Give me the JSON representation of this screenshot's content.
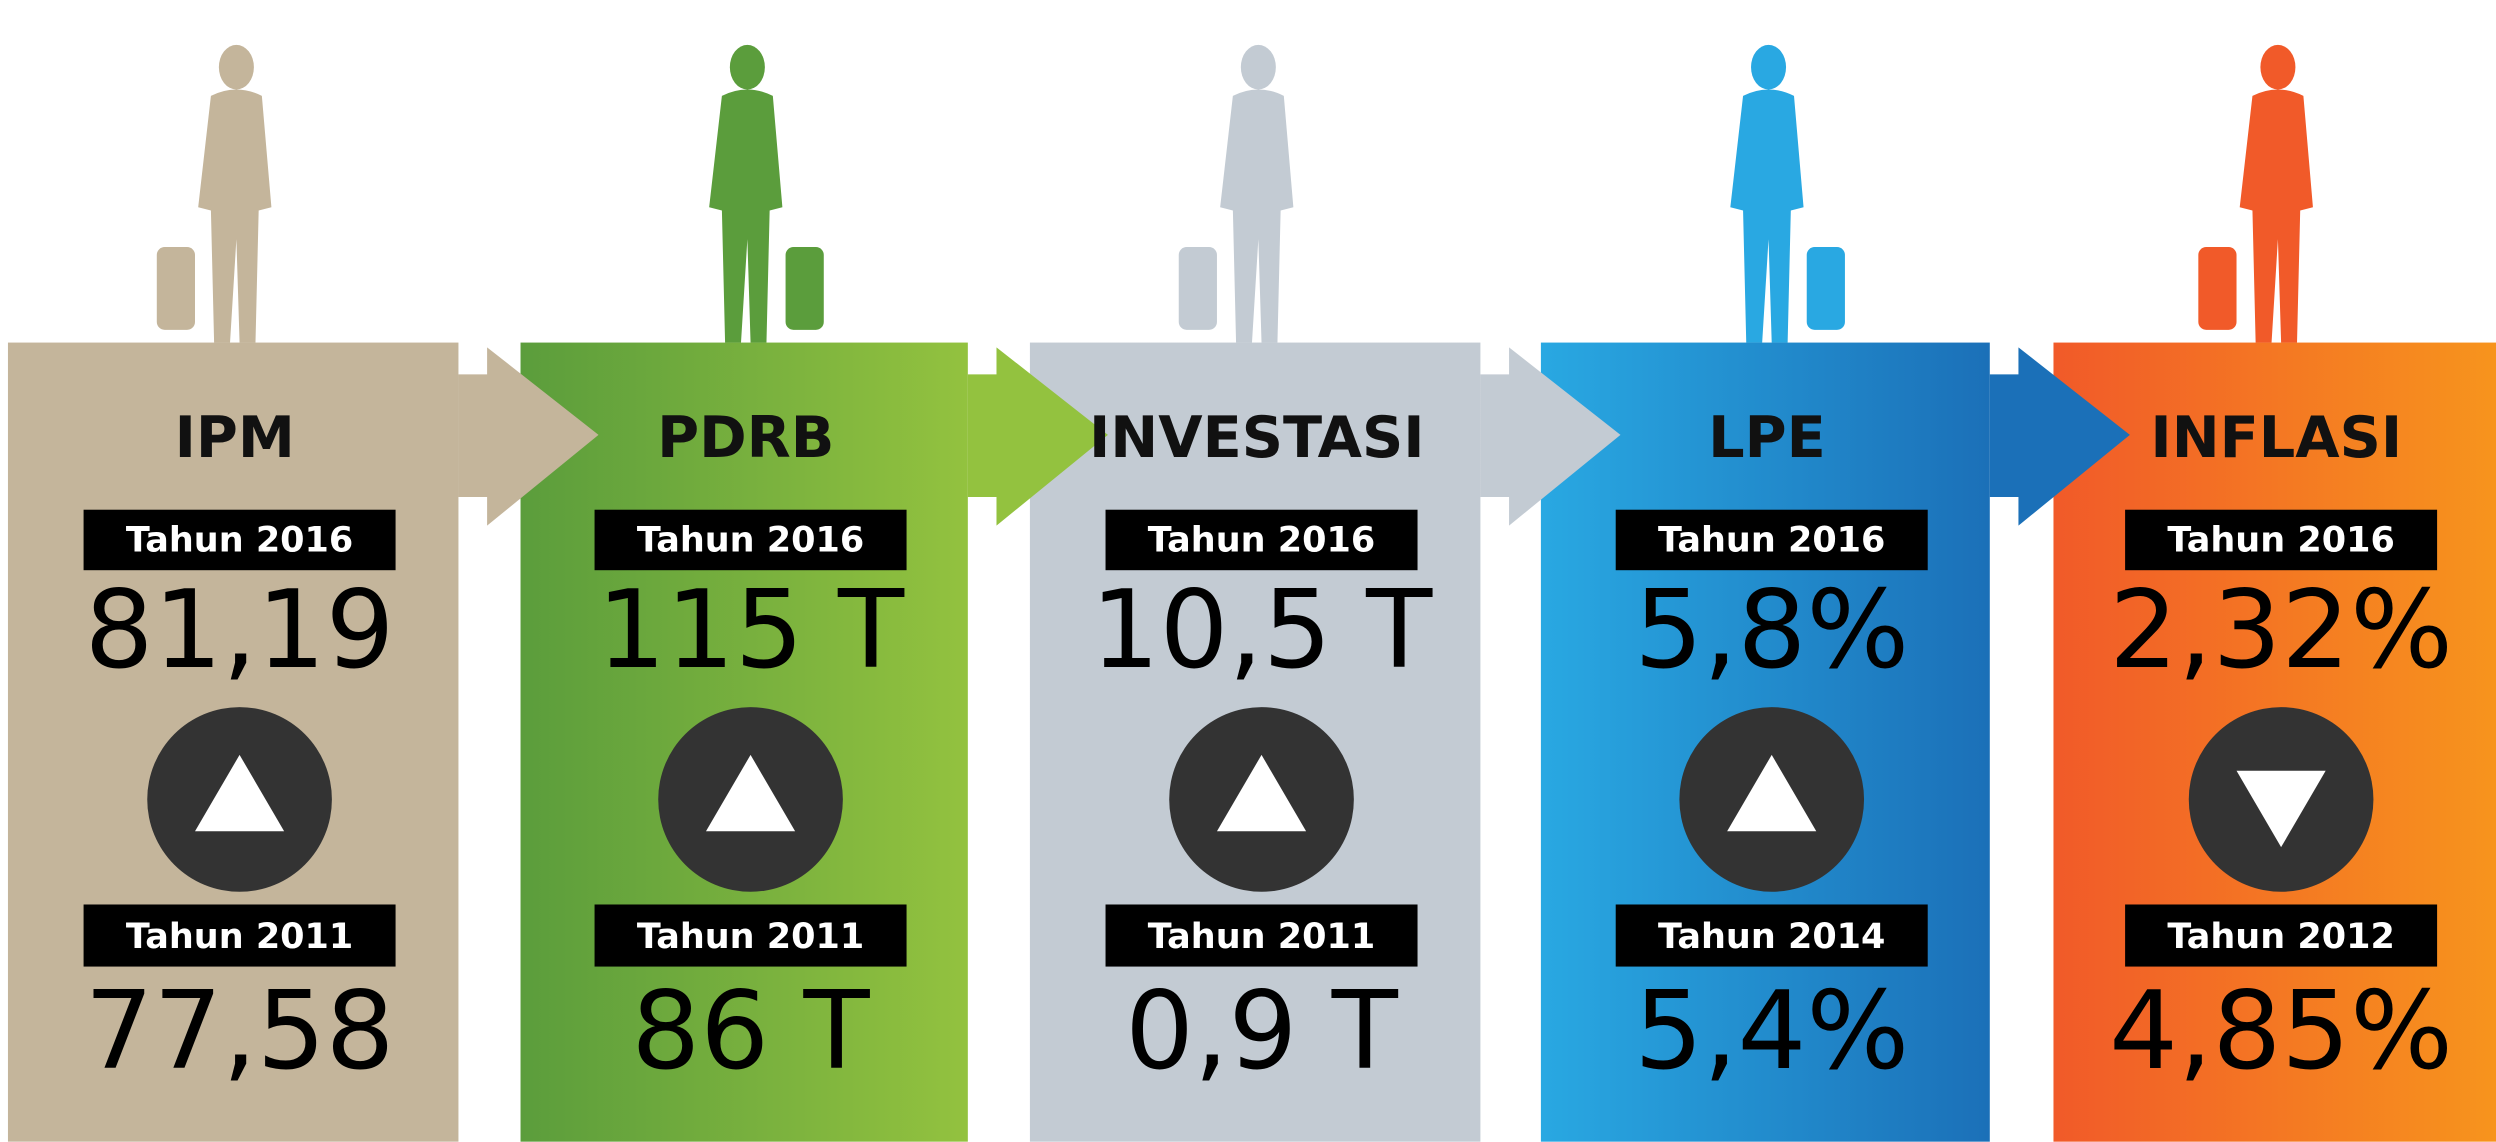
{
  "panels": [
    {
      "title": "IPM",
      "current_label": "Tahun 2016",
      "current_value": "81,19",
      "previous_label": "Tahun 2011",
      "previous_value": "77,58",
      "trend": "up",
      "colors": [
        "#c4b59b",
        "#c4b59b"
      ]
    },
    {
      "title": "PDRB",
      "current_label": "Tahun 2016",
      "current_value": "115 T",
      "previous_label": "Tahun 2011",
      "previous_value": "86 T",
      "trend": "up",
      "colors": [
        "#5b9d3c",
        "#93c23f"
      ]
    },
    {
      "title": "INVESTASI",
      "current_label": "Tahun 2016",
      "current_value": "10,5 T",
      "previous_label": "Tahun 2011",
      "previous_value": "0,9 T",
      "trend": "up",
      "colors": [
        "#c3cbd3",
        "#c3cbd3"
      ]
    },
    {
      "title": "LPE",
      "current_label": "Tahun 2016",
      "current_value": "5,8%",
      "previous_label": "Tahun 2014",
      "previous_value": "5,4%",
      "trend": "up",
      "colors": [
        "#29a8e2",
        "#1b70b8"
      ]
    },
    {
      "title": "INFLASI",
      "current_label": "Tahun 2016",
      "current_value": "2,32%",
      "previous_label": "Tahun 2012",
      "previous_value": "4,85%",
      "trend": "down",
      "colors": [
        "#f15a29",
        "#f7941d"
      ]
    }
  ]
}
